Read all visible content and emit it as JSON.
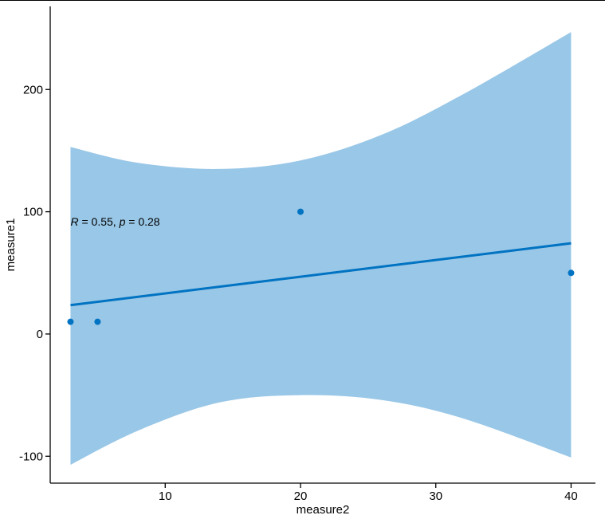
{
  "chart_data": {
    "type": "scatter",
    "xlabel": "measure2",
    "ylabel": "measure1",
    "xlim": [
      1.5,
      41.8
    ],
    "ylim": [
      -122,
      268
    ],
    "x_ticks": [
      10,
      20,
      30,
      40
    ],
    "y_ticks": [
      -100,
      0,
      100,
      200
    ],
    "x_tick_labels": [
      "10",
      "20",
      "30",
      "40"
    ],
    "y_tick_labels": [
      "-100",
      "0",
      "100",
      "200"
    ],
    "grid": false,
    "points": [
      {
        "x": 3,
        "y": 10
      },
      {
        "x": 5,
        "y": 10
      },
      {
        "x": 20,
        "y": 100
      },
      {
        "x": 40,
        "y": 50
      }
    ],
    "regression": {
      "x_start": 3,
      "x_end": 40,
      "y_start": 23.6,
      "y_end": 74.2
    },
    "confidence_band": {
      "upper": [
        {
          "x": 3,
          "y": 153
        },
        {
          "x": 8,
          "y": 140
        },
        {
          "x": 14,
          "y": 135
        },
        {
          "x": 20,
          "y": 142
        },
        {
          "x": 26,
          "y": 163
        },
        {
          "x": 32,
          "y": 196
        },
        {
          "x": 40,
          "y": 247
        }
      ],
      "lower": [
        {
          "x": 40,
          "y": -101
        },
        {
          "x": 32,
          "y": -69
        },
        {
          "x": 26,
          "y": -54
        },
        {
          "x": 20,
          "y": -50
        },
        {
          "x": 14,
          "y": -56
        },
        {
          "x": 8,
          "y": -79
        },
        {
          "x": 3,
          "y": -107
        }
      ]
    },
    "annotation": {
      "r_symbol": "R",
      "r_text": " = 0.55, ",
      "p_symbol": "p",
      "p_text": " = 0.28",
      "x": 3,
      "y": 92
    },
    "colors": {
      "points": "#0073C2",
      "line": "#0073C2",
      "band": "#0073C2"
    }
  }
}
